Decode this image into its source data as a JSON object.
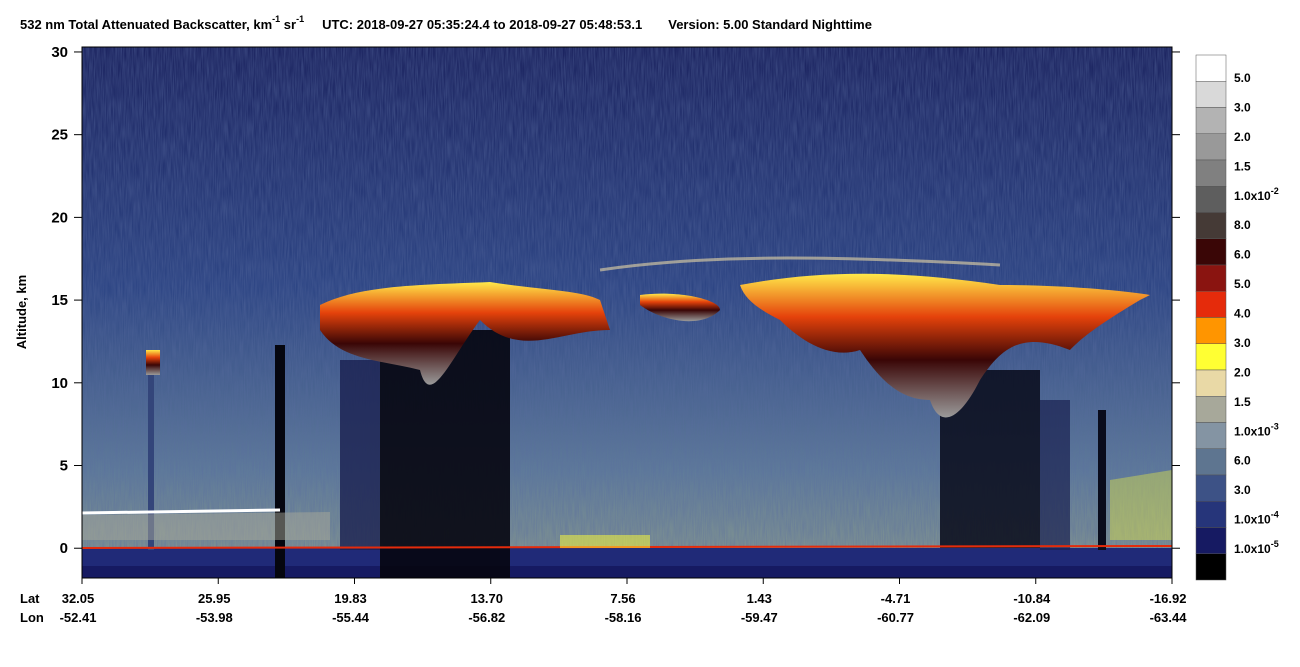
{
  "title": {
    "product": "532 nm Total Attenuated Backscatter, km",
    "unit_exp_1": "-1",
    "unit_sr": " sr",
    "unit_exp_2": "-1",
    "time": "UTC:  2018-09-27 05:35:24.4  to  2018-09-27 05:48:53.1",
    "version": "Version: 5.00  Standard  Nighttime"
  },
  "plot": {
    "type": "curtain",
    "y_label": "Altitude, km",
    "ylim": [
      -1.8,
      30.3
    ],
    "yticks": [
      0,
      5,
      10,
      15,
      20,
      25,
      30
    ],
    "x_labels": {
      "lat": "Lat",
      "lon": "Lon"
    },
    "lat": [
      "32.05",
      "25.95",
      "19.83",
      "13.70",
      "7.56",
      "1.43",
      "-4.71",
      "-10.84",
      "-16.92"
    ],
    "lon": [
      "-52.41",
      "-53.98",
      "-55.44",
      "-56.82",
      "-58.16",
      "-59.47",
      "-60.77",
      "-62.09",
      "-63.44"
    ]
  },
  "colorbar": {
    "colors": [
      "#ffffff",
      "#d9d9d9",
      "#b3b3b3",
      "#999999",
      "#808080",
      "#5e5e5e",
      "#453a36",
      "#3a0606",
      "#8a1410",
      "#e52b0b",
      "#ff9500",
      "#ffff33",
      "#e9d9a6",
      "#a7a89a",
      "#8494a3",
      "#5e7590",
      "#3d5286",
      "#26357a",
      "#161a62",
      "#000000"
    ],
    "labels": [
      {
        "text": "5.0"
      },
      {
        "text": "3.0"
      },
      {
        "text": "2.0"
      },
      {
        "text": "1.5"
      },
      {
        "text": "1.0x10",
        "exp": "-2"
      },
      {
        "text": "8.0"
      },
      {
        "text": "6.0"
      },
      {
        "text": "5.0"
      },
      {
        "text": "4.0"
      },
      {
        "text": "3.0"
      },
      {
        "text": "2.0"
      },
      {
        "text": "1.5"
      },
      {
        "text": "1.0x10",
        "exp": "-3"
      },
      {
        "text": "6.0"
      },
      {
        "text": "3.0"
      },
      {
        "text": "1.0x10",
        "exp": "-4"
      },
      {
        "text": "1.0x10",
        "exp": "-5"
      }
    ]
  }
}
